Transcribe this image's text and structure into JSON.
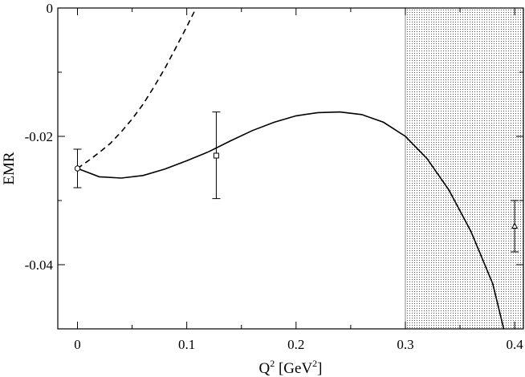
{
  "chart_data": {
    "type": "line",
    "title": "",
    "xlabel": "Q",
    "xlabel_sup": "2",
    "xlabel_unit_open": " [GeV",
    "xlabel_unit_sup": "2",
    "xlabel_unit_close": "]",
    "ylabel": "EMR",
    "xlim": [
      -0.018,
      0.408
    ],
    "ylim": [
      -0.05,
      0.0
    ],
    "xticks": [
      0,
      0.1,
      0.2,
      0.3,
      0.4
    ],
    "xtick_labels": [
      "0",
      "0.1",
      "0.2",
      "0.3",
      "0.4"
    ],
    "yticks": [
      0,
      -0.02,
      -0.04
    ],
    "ytick_labels": [
      "0",
      "-0.02",
      "-0.04"
    ],
    "grid": false,
    "shaded_region": {
      "x_start": 0.3,
      "x_end": 0.408,
      "pattern": "dotted"
    },
    "series": [
      {
        "style": "solid",
        "x": [
          0.0,
          0.02,
          0.04,
          0.06,
          0.08,
          0.1,
          0.12,
          0.14,
          0.16,
          0.18,
          0.2,
          0.22,
          0.24,
          0.26,
          0.28,
          0.3,
          0.32,
          0.34,
          0.36,
          0.38,
          0.39
        ],
        "y": [
          -0.025,
          -0.0263,
          -0.0265,
          -0.0261,
          -0.0251,
          -0.0238,
          -0.0224,
          -0.0207,
          -0.0191,
          -0.0178,
          -0.0168,
          -0.0163,
          -0.0162,
          -0.0166,
          -0.0178,
          -0.02,
          -0.0235,
          -0.0284,
          -0.0348,
          -0.043,
          -0.05
        ]
      },
      {
        "style": "dashed",
        "x": [
          0.0,
          0.01,
          0.02,
          0.03,
          0.04,
          0.05,
          0.06,
          0.07,
          0.08,
          0.09,
          0.1,
          0.11
        ],
        "y": [
          -0.025,
          -0.0238,
          -0.0225,
          -0.0211,
          -0.0193,
          -0.0173,
          -0.015,
          -0.0123,
          -0.0094,
          -0.0062,
          -0.0029,
          0.0005
        ]
      }
    ],
    "points": [
      {
        "x": 0.0,
        "y": -0.025,
        "yerr_low": -0.028,
        "yerr_high": -0.022,
        "marker": "circle"
      },
      {
        "x": 0.127,
        "y": -0.023,
        "yerr_low": -0.0297,
        "yerr_high": -0.0162,
        "marker": "square"
      },
      {
        "x": 0.4,
        "y": -0.034,
        "yerr_low": -0.038,
        "yerr_high": -0.03,
        "marker": "triangle"
      }
    ]
  }
}
